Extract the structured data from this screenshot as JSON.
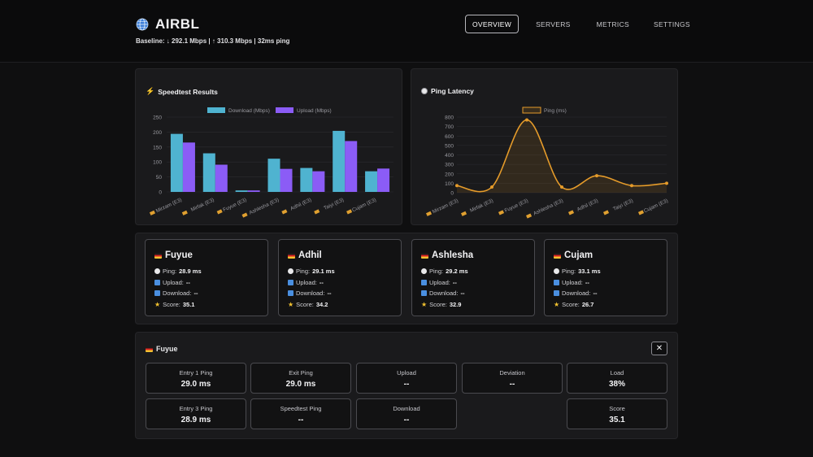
{
  "app": {
    "title": "AIRBL",
    "baseline": "Baseline: ↓ 292.1 Mbps | ↑ 310.3 Mbps | 32ms ping"
  },
  "nav": [
    {
      "label": "OVERVIEW",
      "active": true
    },
    {
      "label": "SERVERS",
      "active": false
    },
    {
      "label": "METRICS",
      "active": false
    },
    {
      "label": "SETTINGS",
      "active": false
    }
  ],
  "charts": {
    "speedtest_title": "Speedtest Results",
    "ping_title": "Ping Latency"
  },
  "chart_data": [
    {
      "type": "bar",
      "title": "Speedtest Results",
      "categories": [
        "Mirzam (E3)",
        "Mirfak (E3)",
        "Fuyue (E3)",
        "Ashlesha (E3)",
        "Adhil (E3)",
        "Taiyi (E3)",
        "Cujam (E3)"
      ],
      "series": [
        {
          "name": "Download (Mbps)",
          "color": "#4fb3d0",
          "values": [
            194,
            129,
            5,
            111,
            80,
            204,
            69
          ]
        },
        {
          "name": "Upload (Mbps)",
          "color": "#8b5cf6",
          "values": [
            165,
            91,
            5,
            77,
            69,
            170,
            78
          ]
        }
      ],
      "yticks": [
        0,
        50,
        100,
        150,
        200,
        250
      ],
      "ylim": [
        0,
        250
      ],
      "legend": "top",
      "grid": true
    },
    {
      "type": "line",
      "title": "Ping Latency",
      "categories": [
        "Mirzam (E3)",
        "Mirfak (E3)",
        "Fuyue (E3)",
        "Ashlesha (E3)",
        "Adhil (E3)",
        "Taiyi (E3)",
        "Cujam (E3)"
      ],
      "series": [
        {
          "name": "Ping (ms)",
          "color": "#e59b2a",
          "values": [
            75,
            60,
            770,
            60,
            180,
            75,
            100
          ]
        }
      ],
      "yticks": [
        0,
        100,
        200,
        300,
        400,
        500,
        600,
        700,
        800
      ],
      "ylim": [
        0,
        800
      ],
      "legend": "top",
      "grid": true,
      "filled": true,
      "smooth": true
    }
  ],
  "servers": [
    {
      "name": "Fuyue",
      "ping": "28.9 ms",
      "upload": "--",
      "download": "--",
      "score": "35.1"
    },
    {
      "name": "Adhil",
      "ping": "29.1 ms",
      "upload": "--",
      "download": "--",
      "score": "34.2"
    },
    {
      "name": "Ashlesha",
      "ping": "29.2 ms",
      "upload": "--",
      "download": "--",
      "score": "32.9"
    },
    {
      "name": "Cujam",
      "ping": "33.1 ms",
      "upload": "--",
      "download": "--",
      "score": "26.7"
    }
  ],
  "card_labels": {
    "ping": "Ping:",
    "upload": "Upload:",
    "download": "Download:",
    "score": "Score:"
  },
  "detail": {
    "title": "Fuyue",
    "close": "✕",
    "metrics": [
      {
        "label": "Entry 1 Ping",
        "value": "29.0 ms"
      },
      {
        "label": "Exit Ping",
        "value": "29.0 ms"
      },
      {
        "label": "Upload",
        "value": "--"
      },
      {
        "label": "Deviation",
        "value": "--"
      },
      {
        "label": "Load",
        "value": "38%"
      },
      {
        "label": "Entry 3 Ping",
        "value": "28.9 ms"
      },
      {
        "label": "Speedtest Ping",
        "value": "--"
      },
      {
        "label": "Download",
        "value": "--"
      },
      {
        "label": "Score",
        "value": "35.1"
      }
    ]
  }
}
